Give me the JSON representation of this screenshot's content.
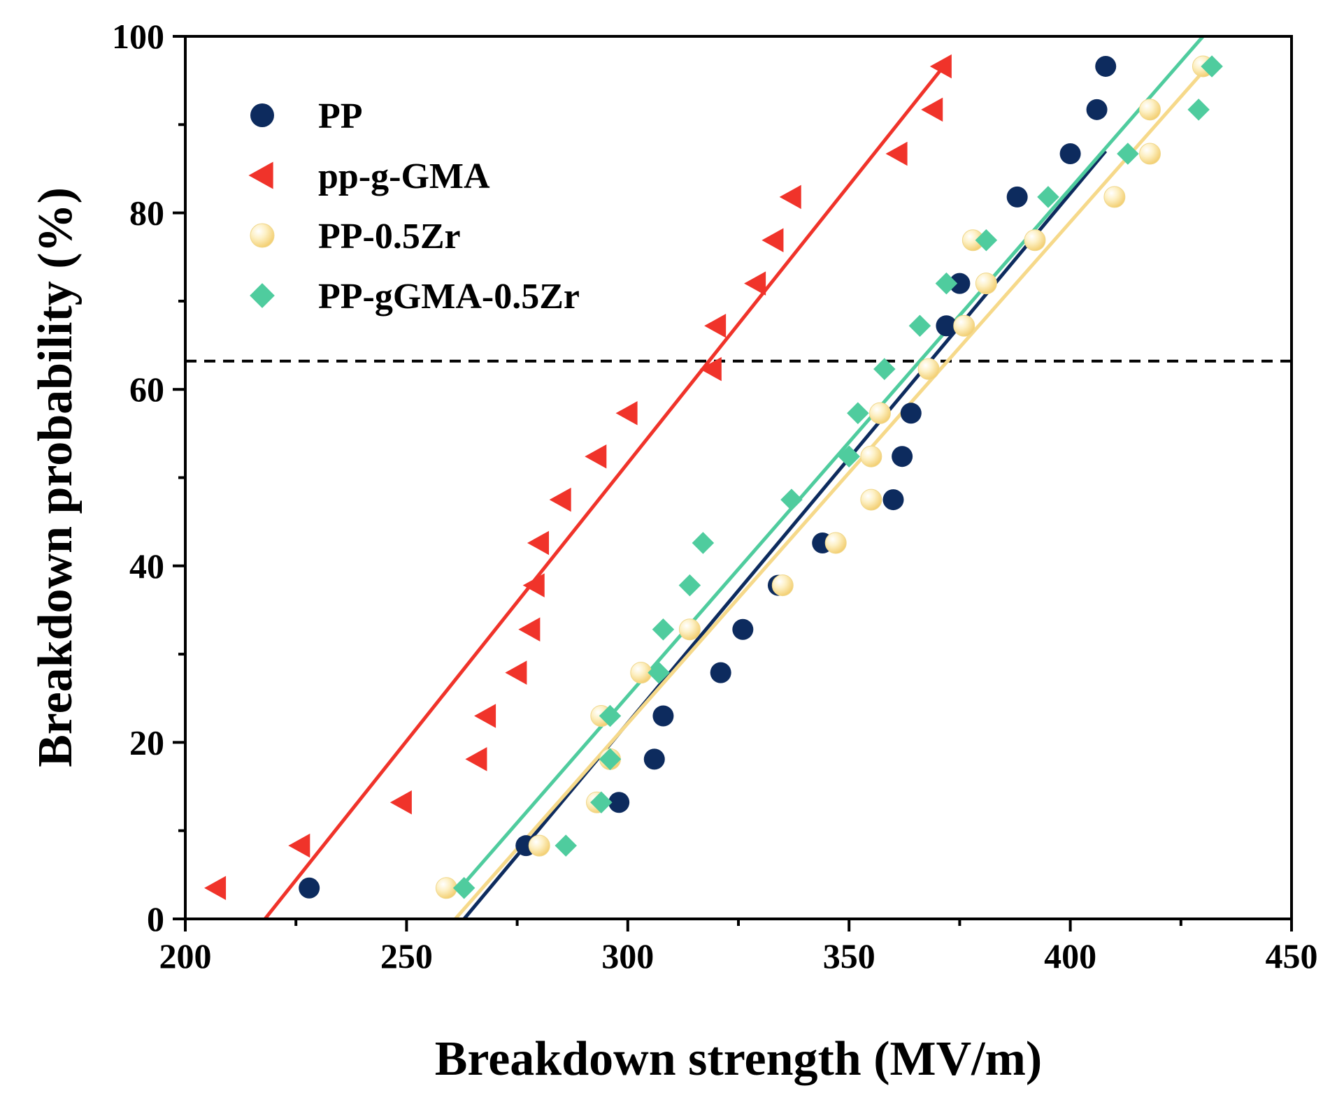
{
  "chart_data": {
    "type": "scatter",
    "title": "",
    "xlabel": "Breakdown strength (MV/m)",
    "ylabel": "Breakdown probability (%)",
    "xlim": [
      200,
      450
    ],
    "ylim": [
      0,
      100
    ],
    "xticks": [
      200,
      250,
      300,
      350,
      400,
      450
    ],
    "yticks": [
      0,
      20,
      40,
      60,
      80,
      100
    ],
    "x_minor_step": 25,
    "y_minor_step": 10,
    "grid": false,
    "legend_position": "top-left",
    "reference_line": {
      "y": 63.2,
      "style": "dashed"
    },
    "series": [
      {
        "name": "PP",
        "marker": "circle",
        "color": "#0d2b5e",
        "points": [
          [
            228,
            3.5
          ],
          [
            277,
            8.3
          ],
          [
            298,
            13.2
          ],
          [
            306,
            18.1
          ],
          [
            308,
            23
          ],
          [
            321,
            27.9
          ],
          [
            326,
            32.8
          ],
          [
            334,
            37.8
          ],
          [
            344,
            42.6
          ],
          [
            360,
            47.5
          ],
          [
            362,
            52.4
          ],
          [
            364,
            57.3
          ],
          [
            368,
            62.3
          ],
          [
            372,
            67.2
          ],
          [
            375,
            72
          ],
          [
            378,
            76.9
          ],
          [
            388,
            81.8
          ],
          [
            400,
            86.7
          ],
          [
            406,
            91.7
          ],
          [
            408,
            96.6
          ]
        ],
        "fit": [
          [
            263,
            0
          ],
          [
            408,
            87
          ]
        ]
      },
      {
        "name": "pp-g-GMA",
        "marker": "triangle-left",
        "color": "#f0332a",
        "points": [
          [
            207,
            3.5
          ],
          [
            226,
            8.3
          ],
          [
            249,
            13.2
          ],
          [
            266,
            18.1
          ],
          [
            268,
            23
          ],
          [
            275,
            27.9
          ],
          [
            278,
            32.8
          ],
          [
            279,
            37.8
          ],
          [
            280,
            42.6
          ],
          [
            285,
            47.5
          ],
          [
            293,
            52.4
          ],
          [
            300,
            57.3
          ],
          [
            319,
            62.3
          ],
          [
            320,
            67.2
          ],
          [
            329,
            72
          ],
          [
            333,
            76.9
          ],
          [
            337,
            81.8
          ],
          [
            361,
            86.7
          ],
          [
            369,
            91.7
          ],
          [
            371,
            96.6
          ]
        ],
        "fit": [
          [
            218,
            0
          ],
          [
            372,
            97
          ]
        ]
      },
      {
        "name": "PP-0.5Zr",
        "marker": "sphere",
        "color": "#fbe4a0",
        "points": [
          [
            259,
            3.5
          ],
          [
            280,
            8.3
          ],
          [
            293,
            13.2
          ],
          [
            296,
            18.1
          ],
          [
            294,
            23
          ],
          [
            303,
            27.9
          ],
          [
            314,
            32.8
          ],
          [
            335,
            37.8
          ],
          [
            347,
            42.6
          ],
          [
            355,
            47.5
          ],
          [
            355,
            52.4
          ],
          [
            357,
            57.3
          ],
          [
            368,
            62.3
          ],
          [
            376,
            67.2
          ],
          [
            381,
            72
          ],
          [
            378,
            76.9
          ],
          [
            392,
            76.9
          ],
          [
            410,
            81.8
          ],
          [
            418,
            86.7
          ],
          [
            418,
            91.7
          ],
          [
            430,
            96.6
          ]
        ],
        "fit": [
          [
            261,
            0
          ],
          [
            430,
            96
          ]
        ]
      },
      {
        "name": "PP-gGMA-0.5Zr",
        "marker": "diamond",
        "color": "#4fcc9e",
        "points": [
          [
            263,
            3.5
          ],
          [
            286,
            8.3
          ],
          [
            294,
            13.2
          ],
          [
            296,
            18.1
          ],
          [
            296,
            23
          ],
          [
            307,
            27.9
          ],
          [
            308,
            32.8
          ],
          [
            314,
            37.8
          ],
          [
            317,
            42.6
          ],
          [
            337,
            47.5
          ],
          [
            350,
            52.4
          ],
          [
            352,
            57.3
          ],
          [
            358,
            62.3
          ],
          [
            366,
            67.2
          ],
          [
            372,
            72
          ],
          [
            381,
            76.9
          ],
          [
            395,
            81.8
          ],
          [
            413,
            86.7
          ],
          [
            429,
            91.7
          ],
          [
            432,
            96.6
          ]
        ],
        "fit": [
          [
            263,
            4
          ],
          [
            430,
            100
          ]
        ]
      }
    ]
  }
}
